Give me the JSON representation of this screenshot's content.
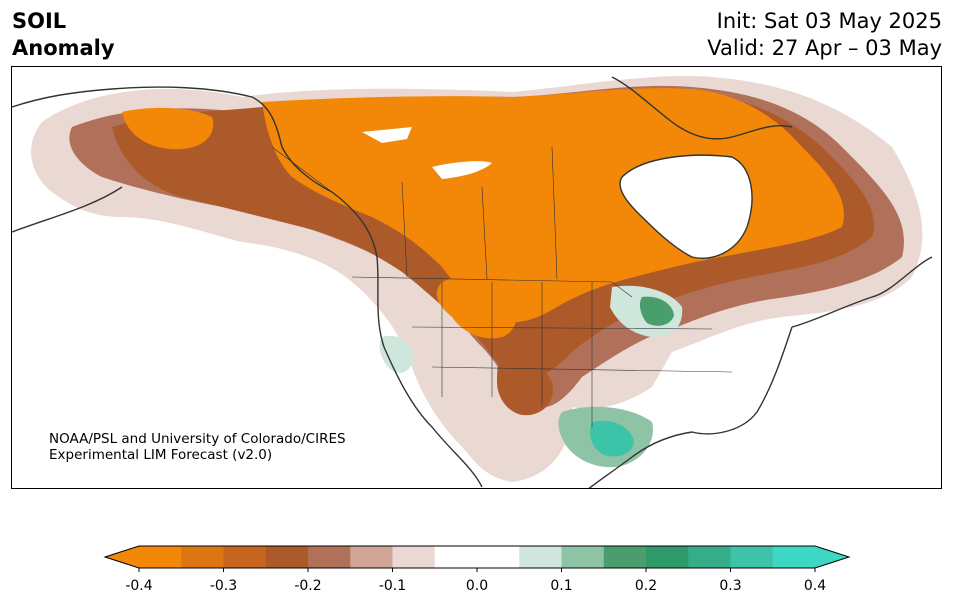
{
  "title": {
    "variable": "SOIL",
    "subtitle": "Anomaly",
    "init": "Init: Sat 03 May 2025",
    "valid": "Valid: 27 Apr – 03 May"
  },
  "credit": {
    "line1": "NOAA/PSL and University of Colorado/CIRES",
    "line2": "Experimental LIM Forecast (v2.0)"
  },
  "colorbar": {
    "levels": [
      -0.4,
      -0.35,
      -0.3,
      -0.25,
      -0.2,
      -0.15,
      -0.1,
      -0.05,
      0.05,
      0.1,
      0.15,
      0.2,
      0.25,
      0.3,
      0.35,
      0.4
    ],
    "colors": [
      "#f28708",
      "#dd7612",
      "#c7661f",
      "#ad5a2a",
      "#b0705a",
      "#d0a595",
      "#ead8d2",
      "#ffffff",
      "#cfe6dc",
      "#8fc3a5",
      "#4a9d6c",
      "#2e9a6a",
      "#35ad88",
      "#3dc4a8",
      "#3dd8c4"
    ],
    "under_color": "#f28708",
    "over_color": "#3dd8c4",
    "ticks": [
      "-0.4",
      "-0.3",
      "-0.2",
      "-0.1",
      "0.0",
      "0.1",
      "0.2",
      "0.3",
      "0.4"
    ]
  }
}
